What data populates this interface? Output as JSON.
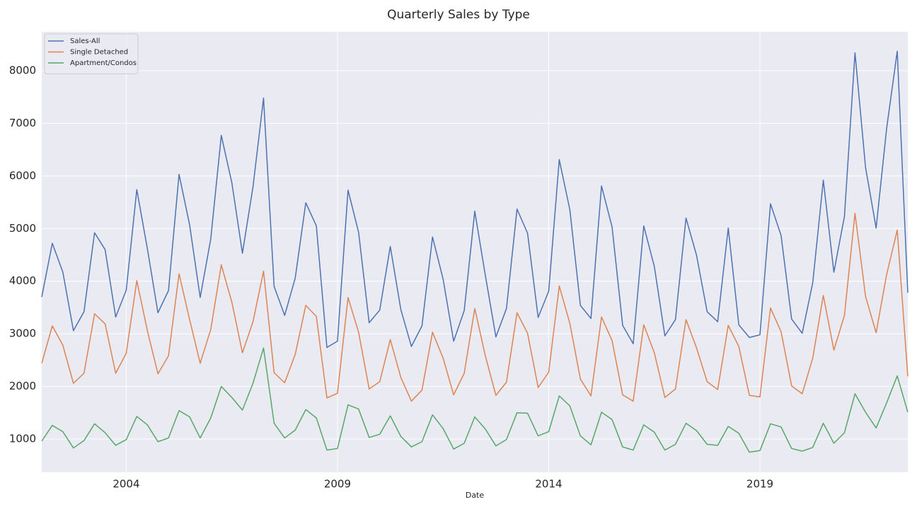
{
  "chart_data": {
    "type": "line",
    "title": "Quarterly Sales by Type",
    "xlabel": "Date",
    "x": [
      2002,
      2002.25,
      2002.5,
      2002.75,
      2003,
      2003.25,
      2003.5,
      2003.75,
      2004,
      2004.25,
      2004.5,
      2004.75,
      2005,
      2005.25,
      2005.5,
      2005.75,
      2006,
      2006.25,
      2006.5,
      2006.75,
      2007,
      2007.25,
      2007.5,
      2007.75,
      2008,
      2008.25,
      2008.5,
      2008.75,
      2009,
      2009.25,
      2009.5,
      2009.75,
      2010,
      2010.25,
      2010.5,
      2010.75,
      2011,
      2011.25,
      2011.5,
      2011.75,
      2012,
      2012.25,
      2012.5,
      2012.75,
      2013,
      2013.25,
      2013.5,
      2013.75,
      2014,
      2014.25,
      2014.5,
      2014.75,
      2015,
      2015.25,
      2015.5,
      2015.75,
      2016,
      2016.25,
      2016.5,
      2016.75,
      2017,
      2017.25,
      2017.5,
      2017.75,
      2018,
      2018.25,
      2018.5,
      2018.75,
      2019,
      2019.25,
      2019.5,
      2019.75,
      2020,
      2020.25,
      2020.5,
      2020.75,
      2021,
      2021.25,
      2021.5,
      2021.75,
      2022,
      2022.25,
      2022.5
    ],
    "series": [
      {
        "name": "Sales-All",
        "color": "#4c72b0",
        "values": [
          3700,
          4720,
          4170,
          3060,
          3420,
          4920,
          4600,
          3320,
          3830,
          5740,
          4620,
          3400,
          3820,
          6030,
          5070,
          3690,
          4800,
          6770,
          5870,
          4530,
          5790,
          7480,
          3900,
          3350,
          4060,
          5490,
          5050,
          2740,
          2860,
          5730,
          4930,
          3210,
          3450,
          4660,
          3460,
          2760,
          3150,
          4840,
          4040,
          2860,
          3440,
          5330,
          4110,
          2940,
          3480,
          5370,
          4910,
          3310,
          3810,
          6310,
          5360,
          3540,
          3290,
          5810,
          5030,
          3160,
          2810,
          5050,
          4280,
          2960,
          3270,
          5200,
          4490,
          3420,
          3230,
          5010,
          3170,
          2930,
          2980,
          5470,
          4870,
          3280,
          3010,
          3970,
          5920,
          4170,
          5230,
          8340,
          6160,
          5010,
          6910,
          8370,
          3780
        ]
      },
      {
        "name": "Single Detached",
        "color": "#dd8452",
        "values": [
          2440,
          3150,
          2780,
          2060,
          2250,
          3380,
          3190,
          2250,
          2630,
          4010,
          3060,
          2240,
          2580,
          4140,
          3270,
          2440,
          3080,
          4310,
          3600,
          2640,
          3230,
          4190,
          2260,
          2070,
          2610,
          3540,
          3330,
          1780,
          1870,
          3690,
          3030,
          1950,
          2090,
          2890,
          2170,
          1720,
          1930,
          3030,
          2540,
          1840,
          2250,
          3480,
          2580,
          1830,
          2080,
          3400,
          3010,
          1980,
          2270,
          3910,
          3200,
          2140,
          1820,
          3320,
          2870,
          1840,
          1720,
          3170,
          2640,
          1790,
          1950,
          3270,
          2730,
          2090,
          1940,
          3160,
          2760,
          1830,
          1800,
          3490,
          3040,
          2010,
          1860,
          2540,
          3730,
          2690,
          3350,
          5290,
          3710,
          3020,
          4130,
          4970,
          2190
        ]
      },
      {
        "name": "Apartment/Condos",
        "color": "#55a868",
        "values": [
          960,
          1260,
          1140,
          830,
          970,
          1290,
          1120,
          880,
          990,
          1430,
          1270,
          950,
          1020,
          1540,
          1420,
          1020,
          1400,
          2000,
          1790,
          1550,
          2060,
          2730,
          1300,
          1020,
          1170,
          1560,
          1400,
          790,
          820,
          1650,
          1570,
          1030,
          1090,
          1440,
          1050,
          850,
          950,
          1460,
          1200,
          810,
          920,
          1420,
          1190,
          870,
          990,
          1500,
          1490,
          1060,
          1140,
          1820,
          1630,
          1060,
          890,
          1510,
          1370,
          850,
          790,
          1270,
          1130,
          790,
          900,
          1300,
          1160,
          900,
          880,
          1240,
          1110,
          750,
          780,
          1290,
          1230,
          820,
          770,
          840,
          1300,
          920,
          1120,
          1860,
          1510,
          1210,
          1690,
          2200,
          1510
        ]
      }
    ],
    "xlim": [
      2002,
      2022.5
    ],
    "xticks": [
      2004,
      2009,
      2014,
      2019
    ],
    "ylim": [
      369,
      8739
    ],
    "yticks": [
      1000,
      2000,
      3000,
      4000,
      5000,
      6000,
      7000,
      8000
    ],
    "grid": true,
    "legend": "upper left"
  }
}
